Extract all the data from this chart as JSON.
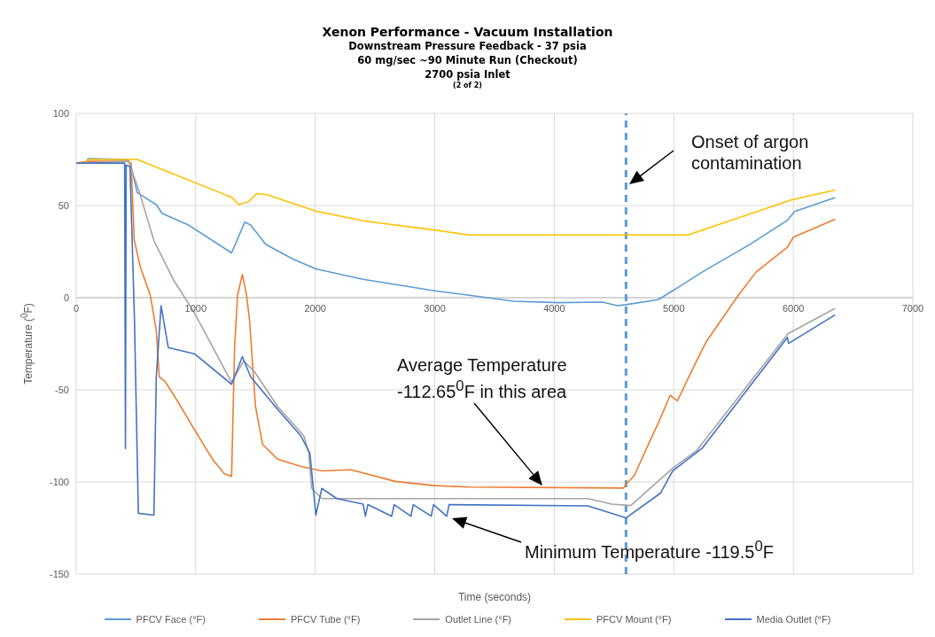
{
  "chart_data": {
    "type": "line",
    "title": "Xenon Performance - Vacuum Installation",
    "subtitle": "Downstream Pressure Feedback - 37 psia\n60 mg/sec ~90 Minute Run (Checkout)\n2700 psia Inlet",
    "xlabel": "Time (seconds)",
    "ylabel": "Temperature ($^{0}$F)",
    "xlim": [
      0,
      7000
    ],
    "xticks": [
      0,
      1000,
      2000,
      3000,
      4000,
      5000,
      6000,
      7000
    ],
    "ylim": [
      -150,
      100
    ],
    "yticks": [
      -150,
      -100,
      -50,
      0,
      50,
      100
    ],
    "grid": true,
    "legend": "bottom",
    "marker": "none",
    "line_style": "solid",
    "series": [
      {
        "name": "PFCV Face (°F)",
        "color": "#5b9bd5",
        "x": [
          0,
          80,
          100,
          430,
          460,
          510,
          670,
          720,
          940,
          1300,
          1410,
          1460,
          1585,
          1810,
          2005,
          2400,
          3000,
          3290,
          3660,
          4030,
          4400,
          4530,
          4600,
          4870,
          4990,
          5240,
          5640,
          5950,
          6010,
          6350
        ],
        "values": [
          73,
          73,
          75.5,
          75,
          71,
          57,
          50.5,
          45.7,
          39.4,
          24.3,
          41,
          39.4,
          29,
          21,
          15.6,
          10,
          3.7,
          1.3,
          -1.9,
          -2.7,
          -2.4,
          -4.3,
          -3.8,
          -1.1,
          3.7,
          14,
          29,
          42,
          46.8,
          54.3
        ]
      },
      {
        "name": "PFCV Tube (°F)",
        "color": "#ed7d31",
        "x": [
          0,
          100,
          440,
          460,
          485,
          535,
          620,
          670,
          695,
          745,
          845,
          990,
          1140,
          1240,
          1300,
          1325,
          1350,
          1390,
          1425,
          1450,
          1500,
          1560,
          1685,
          1880,
          2055,
          2300,
          2670,
          3000,
          3290,
          4580,
          4600,
          4670,
          4770,
          4870,
          4970,
          5030,
          5150,
          5270,
          5540,
          5690,
          5950,
          6000,
          6350
        ],
        "values": [
          73,
          74,
          74,
          72.7,
          31.4,
          17,
          1.3,
          -17.8,
          -43,
          -45.6,
          -55.9,
          -71.7,
          -87.6,
          -95.6,
          -97,
          -27,
          1.3,
          12.7,
          1.3,
          -12,
          -59,
          -79.7,
          -87.6,
          -91.6,
          -94,
          -93.4,
          -99.7,
          -102,
          -102.8,
          -103.3,
          -101.3,
          -96.5,
          -82,
          -68,
          -53,
          -56,
          -39.7,
          -24,
          1.3,
          14,
          27.3,
          32.8,
          42.6
        ]
      },
      {
        "name": "Outlet Line (°F)",
        "color": "#a5a5a5",
        "x": [
          0,
          440,
          460,
          525,
          650,
          820,
          990,
          1300,
          1400,
          1490,
          1685,
          1905,
          1945,
          1970,
          2055,
          2400,
          4280,
          4480,
          4640,
          4990,
          5190,
          5955,
          6350
        ],
        "values": [
          73,
          74,
          70,
          58,
          31,
          9,
          -8.3,
          -46,
          -34.4,
          -40,
          -59,
          -75,
          -84,
          -103.5,
          -109,
          -109,
          -109,
          -112,
          -112.8,
          -92.6,
          -83,
          -19.6,
          -5.8
        ]
      },
      {
        "name": "PFCV Mount (°F)",
        "color": "#ffc000",
        "x": [
          0,
          80,
          100,
          510,
          1300,
          1360,
          1440,
          1510,
          1590,
          2005,
          2400,
          3000,
          3290,
          5118,
          5980,
          6350
        ],
        "values": [
          73,
          73,
          75,
          75,
          54.5,
          50.5,
          52,
          56.5,
          56,
          47,
          41.7,
          36.7,
          34,
          34,
          53,
          58.4
        ]
      },
      {
        "name": "Media Outlet (°F)",
        "color": "#4472c4",
        "x": [
          0,
          405,
          412,
          418,
          450,
          487,
          520,
          650,
          670,
          710,
          770,
          990,
          1300,
          1390,
          1460,
          1685,
          1880,
          1955,
          2005,
          2055,
          2180,
          2400,
          2420,
          2440,
          2640,
          2660,
          2800,
          2820,
          2970,
          2990,
          3100,
          3120,
          4280,
          4600,
          4890,
          4990,
          5240,
          5950,
          5960,
          6350
        ],
        "values": [
          73,
          73,
          -82,
          72,
          71,
          -11,
          -117,
          -118,
          -43,
          -4.3,
          -27,
          -30.5,
          -47,
          -32,
          -43,
          -60.6,
          -75,
          -84.4,
          -118,
          -103.5,
          -109,
          -112,
          -118.6,
          -112.3,
          -118.6,
          -112.3,
          -118.6,
          -112.3,
          -118.6,
          -112.3,
          -118.6,
          -112.3,
          -113,
          -119.5,
          -106,
          -94,
          -81.5,
          -21.6,
          -24.8,
          -9.3
        ]
      }
    ],
    "ref_lines": [
      {
        "axis": "x",
        "value": 4600,
        "color": "#5b9bd5",
        "line_style": "dashed"
      }
    ],
    "annotations": [
      "(2 of 2)",
      "Onset of argon contamination",
      "Average Temperature -112.65$^{0}$F in this area",
      "Minimum Temperature -119.5$^{0}$F"
    ]
  }
}
